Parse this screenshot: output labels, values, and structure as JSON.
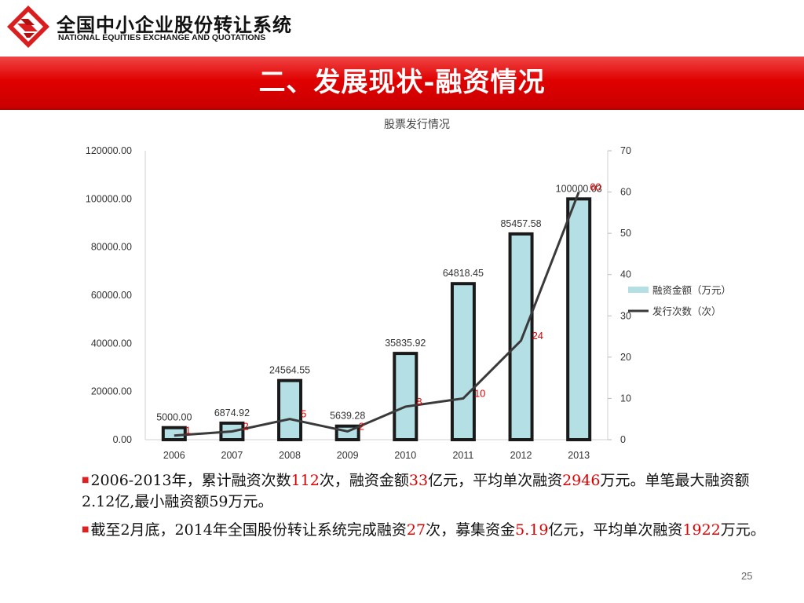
{
  "header": {
    "org_name_cn": "全国中小企业股份转让系统",
    "org_name_en": "NATIONAL EQUITIES EXCHANGE AND QUOTATIONS",
    "logo_icon": "neeq-logo-icon"
  },
  "slide": {
    "title": "二、发展现状-融资情况",
    "page_number": "25"
  },
  "colors": {
    "title_bar": "#e00000",
    "bar_fill": "#b4dfe4",
    "bar_stroke": "#1a1a1a",
    "line": "#3a3a3a",
    "highlight": "#e00000"
  },
  "chart_data": {
    "type": "bar",
    "title": "股票发行情况",
    "categories": [
      "2006",
      "2007",
      "2008",
      "2009",
      "2010",
      "2011",
      "2012",
      "2013"
    ],
    "series": [
      {
        "name": "融资金额（万元）",
        "type": "bar",
        "axis": "left",
        "values": [
          5000.0,
          6874.92,
          24564.55,
          5639.28,
          35835.92,
          64818.45,
          85457.58,
          100000.03
        ],
        "labels": [
          "5000.00",
          "6874.92",
          "24564.55",
          "5639.28",
          "35835.92",
          "64818.45",
          "85457.58",
          "100000.03"
        ]
      },
      {
        "name": "发行次数（次）",
        "type": "line",
        "axis": "right",
        "values": [
          1,
          2,
          5,
          2,
          8,
          10,
          24,
          60
        ],
        "labels": [
          "1",
          "2",
          "5",
          "2",
          "8",
          "10",
          "24",
          "60"
        ]
      }
    ],
    "y_left": {
      "min": 0,
      "max": 120000,
      "ticks": [
        "0.00",
        "20000.00",
        "40000.00",
        "60000.00",
        "80000.00",
        "100000.00",
        "120000.00"
      ]
    },
    "y_right": {
      "min": 0,
      "max": 70,
      "ticks": [
        "0",
        "10",
        "20",
        "30",
        "40",
        "50",
        "60",
        "70"
      ]
    },
    "legend_position": "right",
    "grid": false
  },
  "bullets": [
    {
      "segments": [
        {
          "text": "2006-2013年，累计融资次数",
          "hl": false
        },
        {
          "text": "112",
          "hl": true
        },
        {
          "text": "次，融资金额",
          "hl": false
        },
        {
          "text": "33",
          "hl": true
        },
        {
          "text": "亿元，平均单次融资",
          "hl": false
        },
        {
          "text": "2946",
          "hl": true
        },
        {
          "text": "万元。单笔最大融资额2.12亿,最小融资额59万元。",
          "hl": false
        }
      ]
    },
    {
      "segments": [
        {
          "text": "截至2月底，2014年全国股份转让系统完成融资",
          "hl": false
        },
        {
          "text": "27",
          "hl": true
        },
        {
          "text": "次，募集资金",
          "hl": false
        },
        {
          "text": "5.19",
          "hl": true
        },
        {
          "text": "亿元，平均单次融资",
          "hl": false
        },
        {
          "text": "1922",
          "hl": true
        },
        {
          "text": "万元。",
          "hl": false
        }
      ]
    }
  ]
}
